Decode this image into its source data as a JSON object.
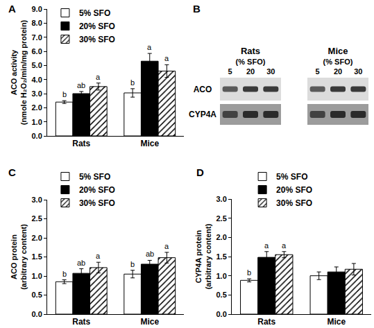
{
  "chart_data": [
    {
      "type": "bar",
      "title": "A",
      "ylabel": [
        "ACO activity",
        "(nmole H₂O₂/min/mg protein)"
      ],
      "categories": [
        "Rats",
        "Mice"
      ],
      "ylim": [
        0,
        9
      ],
      "yticks": [
        {
          "value": 0,
          "label": "0.0"
        },
        {
          "value": 1,
          "label": "1.0"
        },
        {
          "value": 2,
          "label": "2.0"
        },
        {
          "value": 3,
          "label": "3.0"
        },
        {
          "value": 4,
          "label": "4.0"
        },
        {
          "value": 5,
          "label": "5.0"
        },
        {
          "value": 6,
          "label": "6.0"
        },
        {
          "value": 7,
          "label": "7.0"
        },
        {
          "value": 8,
          "label": "8.0"
        },
        {
          "value": 9,
          "label": "9.0"
        }
      ],
      "grid": false,
      "legend": "top left",
      "series": [
        {
          "name": "5% SFO",
          "color": "#ffffff",
          "marker": "solid",
          "values": [
            2.4,
            3.05
          ],
          "errors": [
            0.1,
            0.3
          ],
          "annotations": [
            "b",
            "b"
          ]
        },
        {
          "name": "20% SFO",
          "color": "#000000",
          "marker": "solid",
          "values": [
            3.0,
            5.3
          ],
          "errors": [
            0.15,
            0.55
          ],
          "annotations": [
            "ab",
            "a"
          ]
        },
        {
          "name": "30% SFO",
          "color": "#ffffff",
          "marker": "hatched",
          "values": [
            3.5,
            4.6
          ],
          "errors": [
            0.25,
            0.45
          ],
          "annotations": [
            "a",
            "a"
          ]
        }
      ]
    },
    {
      "type": "bar",
      "title": "C",
      "ylabel": [
        "ACO protein",
        "(arbitrary content)"
      ],
      "categories": [
        "Rats",
        "Mice"
      ],
      "ylim": [
        0,
        3
      ],
      "yticks": [
        {
          "value": 0,
          "label": "0.0"
        },
        {
          "value": 0.5,
          "label": "0.5"
        },
        {
          "value": 1,
          "label": "1.0"
        },
        {
          "value": 1.5,
          "label": "1.5"
        },
        {
          "value": 2,
          "label": "2.0"
        },
        {
          "value": 2.5,
          "label": "2.5"
        },
        {
          "value": 3,
          "label": "3.0"
        }
      ],
      "grid": false,
      "legend": "top left",
      "series": [
        {
          "name": "5% SFO",
          "color": "#ffffff",
          "marker": "solid",
          "values": [
            0.85,
            1.05
          ],
          "errors": [
            0.05,
            0.1
          ],
          "annotations": [
            "b",
            "b"
          ]
        },
        {
          "name": "20% SFO",
          "color": "#000000",
          "marker": "solid",
          "values": [
            1.07,
            1.31
          ],
          "errors": [
            0.12,
            0.1
          ],
          "annotations": [
            "ab",
            "ab"
          ]
        },
        {
          "name": "30% SFO",
          "color": "#ffffff",
          "marker": "hatched",
          "values": [
            1.22,
            1.48
          ],
          "errors": [
            0.14,
            0.14
          ],
          "annotations": [
            "a",
            "a"
          ]
        }
      ]
    },
    {
      "type": "bar",
      "title": "D",
      "ylabel": [
        "CYP4A protein",
        "(arbitrary content)"
      ],
      "categories": [
        "Rats",
        "Mice"
      ],
      "ylim": [
        0,
        3
      ],
      "yticks": [
        {
          "value": 0,
          "label": "0.0"
        },
        {
          "value": 0.5,
          "label": "0.5"
        },
        {
          "value": 1,
          "label": "1.0"
        },
        {
          "value": 1.5,
          "label": "1.5"
        },
        {
          "value": 2,
          "label": "2.0"
        },
        {
          "value": 2.5,
          "label": "2.5"
        },
        {
          "value": 3,
          "label": "3.0"
        }
      ],
      "grid": false,
      "legend": "top left",
      "series": [
        {
          "name": "5% SFO",
          "color": "#ffffff",
          "marker": "solid",
          "values": [
            0.88,
            1.0
          ],
          "errors": [
            0.04,
            0.1
          ],
          "annotations": [
            "b",
            null
          ]
        },
        {
          "name": "20% SFO",
          "color": "#000000",
          "marker": "solid",
          "values": [
            1.48,
            1.1
          ],
          "errors": [
            0.15,
            0.13
          ],
          "annotations": [
            "a",
            null
          ]
        },
        {
          "name": "30% SFO",
          "color": "#ffffff",
          "marker": "hatched",
          "values": [
            1.55,
            1.17
          ],
          "errors": [
            0.08,
            0.15
          ],
          "annotations": [
            "a",
            null
          ]
        }
      ]
    }
  ],
  "blot": {
    "label": "B",
    "groups": [
      {
        "name": "Rats",
        "lanes_title": "(% SFO)",
        "lanes": [
          "5",
          "20",
          "30"
        ]
      },
      {
        "name": "Mice",
        "lanes_title": "(% SFO)",
        "lanes": [
          "5",
          "20",
          "30"
        ]
      }
    ],
    "rows": [
      "ACO",
      "CYP4A"
    ]
  }
}
